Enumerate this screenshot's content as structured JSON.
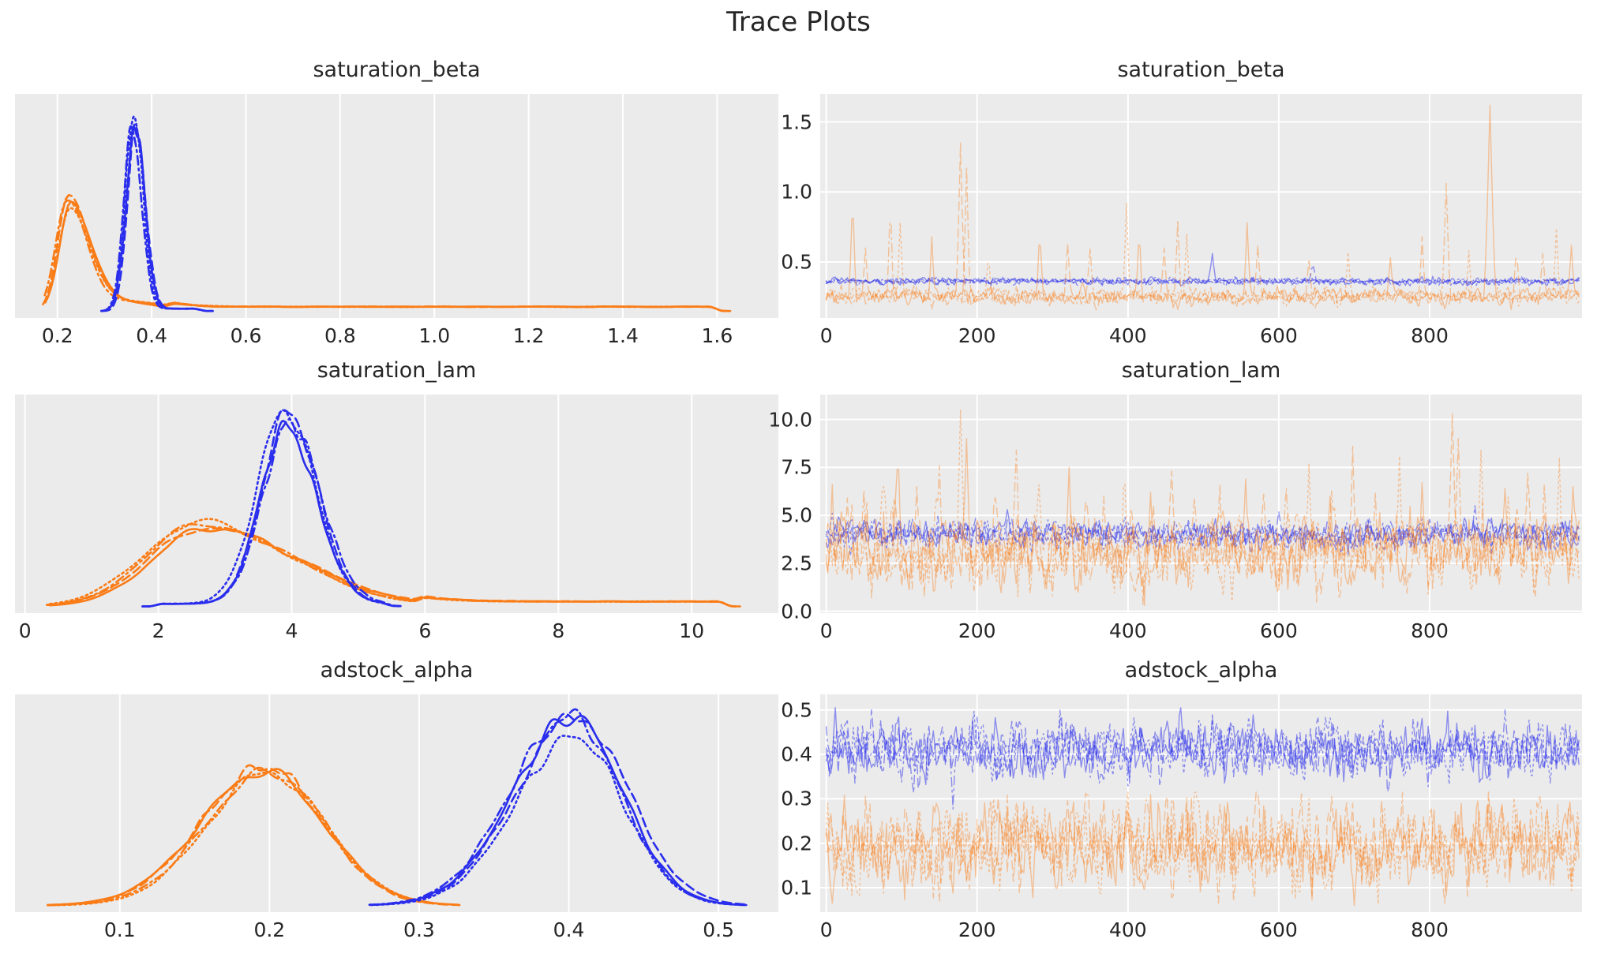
{
  "figure": {
    "title": "Trace Plots"
  },
  "style": {
    "background": "#ffffff",
    "panel_bg": "#ebebeb",
    "grid_color": "#ffffff",
    "text_color": "#262626",
    "blue": "#2a2eec",
    "orange": "#fa7c17",
    "chains_per_color": 4,
    "linestyles": [
      "solid",
      "dashed",
      "dashdot",
      "dotted"
    ],
    "legend": "none",
    "grid": "on"
  },
  "chart_data": [
    {
      "id": "saturation_beta-density",
      "type": "kde",
      "title": "saturation_beta",
      "xlim": [
        0.11,
        1.73
      ],
      "xticks": [
        0.2,
        0.4,
        0.6,
        0.8,
        1.0,
        1.2,
        1.4,
        1.6
      ],
      "xtick_labels": [
        "0.2",
        "0.4",
        "0.6",
        "0.8",
        "1.0",
        "1.2",
        "1.4",
        "1.6"
      ],
      "yticks": [],
      "ytick_labels": [],
      "series": [
        {
          "name": "chain-orange",
          "color": "orange",
          "support": [
            0.172,
            1.625
          ],
          "components": [
            {
              "m": 0.227,
              "sdl": 0.024,
              "sdr": 0.042,
              "h": 0.54
            },
            {
              "m": 0.33,
              "sdl": 0.05,
              "sdr": 0.08,
              "h": 0.05
            }
          ],
          "tail": {
            "from": 0.42,
            "to": 1.615,
            "level": 0.022
          }
        },
        {
          "name": "chain-blue",
          "color": "blue",
          "support": [
            0.293,
            0.53
          ],
          "components": [
            {
              "m": 0.358,
              "sdl": 0.0185,
              "sdr": 0.02,
              "h": 0.97
            }
          ],
          "tail": {
            "from": 0.31,
            "to": 0.52,
            "level": 0.012
          }
        }
      ]
    },
    {
      "id": "saturation_beta-trace",
      "type": "trace",
      "title": "saturation_beta",
      "xlim": [
        -8,
        1002
      ],
      "n_draws": 1000,
      "xticks": [
        0,
        200,
        400,
        600,
        800
      ],
      "xtick_labels": [
        "0",
        "200",
        "400",
        "600",
        "800"
      ],
      "ylim": [
        0.1,
        1.7
      ],
      "yticks": [
        0.5,
        1.0,
        1.5
      ],
      "ytick_labels": [
        "0.5",
        "1.0",
        "1.5"
      ],
      "series": [
        {
          "name": "chains-blue",
          "color": "blue",
          "mean": 0.362,
          "sd": 0.011,
          "clip": [
            0.3,
            1.7
          ],
          "spikes": [
            {
              "x": 512,
              "v": 0.56
            },
            {
              "x": 645,
              "v": 0.5
            }
          ]
        },
        {
          "name": "chains-orange",
          "color": "orange",
          "mean": 0.253,
          "sd": 0.024,
          "clip": [
            0.16,
            1.7
          ],
          "spikes": [
            {
              "x": 35,
              "v": 1.0
            },
            {
              "x": 52,
              "v": 0.6
            },
            {
              "x": 85,
              "v": 0.96
            },
            {
              "x": 98,
              "v": 0.78
            },
            {
              "x": 140,
              "v": 0.68
            },
            {
              "x": 178,
              "v": 1.35,
              "w": 6
            },
            {
              "x": 186,
              "v": 1.18
            },
            {
              "x": 215,
              "v": 0.56
            },
            {
              "x": 283,
              "v": 0.74
            },
            {
              "x": 320,
              "v": 0.63
            },
            {
              "x": 350,
              "v": 0.6
            },
            {
              "x": 398,
              "v": 0.92
            },
            {
              "x": 415,
              "v": 0.74
            },
            {
              "x": 448,
              "v": 0.6
            },
            {
              "x": 466,
              "v": 0.8
            },
            {
              "x": 478,
              "v": 0.7
            },
            {
              "x": 558,
              "v": 0.78
            },
            {
              "x": 572,
              "v": 0.62
            },
            {
              "x": 640,
              "v": 0.52
            },
            {
              "x": 692,
              "v": 0.57
            },
            {
              "x": 748,
              "v": 0.53
            },
            {
              "x": 790,
              "v": 0.68
            },
            {
              "x": 822,
              "v": 1.06,
              "w": 6
            },
            {
              "x": 852,
              "v": 0.58
            },
            {
              "x": 880,
              "v": 1.62,
              "w": 8
            },
            {
              "x": 915,
              "v": 0.62
            },
            {
              "x": 950,
              "v": 0.56
            },
            {
              "x": 968,
              "v": 0.74
            },
            {
              "x": 988,
              "v": 0.62
            }
          ]
        }
      ]
    },
    {
      "id": "saturation_lam-density",
      "type": "kde",
      "title": "saturation_lam",
      "xlim": [
        -0.15,
        11.3
      ],
      "xticks": [
        0,
        2,
        4,
        6,
        8,
        10
      ],
      "xtick_labels": [
        "0",
        "2",
        "4",
        "6",
        "8",
        "10"
      ],
      "yticks": [],
      "ytick_labels": [],
      "series": [
        {
          "name": "chain-orange",
          "color": "orange",
          "support": [
            0.33,
            10.68
          ],
          "components": [
            {
              "m": 2.68,
              "sdl": 0.8,
              "sdr": 1.35,
              "h": 0.42
            }
          ],
          "tail": {
            "from": 5.8,
            "to": 10.62,
            "level": 0.025
          }
        },
        {
          "name": "chain-blue",
          "color": "blue",
          "support": [
            1.78,
            5.62
          ],
          "components": [
            {
              "m": 3.93,
              "sdl": 0.4,
              "sdr": 0.45,
              "h": 0.96
            }
          ],
          "tail": {
            "from": 1.85,
            "to": 5.55,
            "level": 0.013
          }
        }
      ]
    },
    {
      "id": "saturation_lam-trace",
      "type": "trace",
      "title": "saturation_lam",
      "xlim": [
        -8,
        1002
      ],
      "n_draws": 1000,
      "xticks": [
        0,
        200,
        400,
        600,
        800
      ],
      "xtick_labels": [
        "0",
        "200",
        "400",
        "600",
        "800"
      ],
      "ylim": [
        -0.1,
        11.3
      ],
      "yticks": [
        0.0,
        2.5,
        5.0,
        7.5,
        10.0
      ],
      "ytick_labels": [
        "0.0",
        "2.5",
        "5.0",
        "7.5",
        "10.0"
      ],
      "series": [
        {
          "name": "chains-blue",
          "color": "blue",
          "mean": 4.0,
          "sd": 0.3,
          "clip": [
            2.6,
            5.6
          ],
          "spikes": [
            {
              "x": 240,
              "v": 5.3
            },
            {
              "x": 600,
              "v": 5.2
            },
            {
              "x": 860,
              "v": 5.5
            }
          ]
        },
        {
          "name": "chains-orange",
          "color": "orange",
          "mean": 3.15,
          "sd": 0.78,
          "clip": [
            0.3,
            11.2
          ],
          "spikes": [
            {
              "x": 8,
              "v": 6.6
            },
            {
              "x": 28,
              "v": 5.9
            },
            {
              "x": 50,
              "v": 6.3
            },
            {
              "x": 75,
              "v": 7.4
            },
            {
              "x": 95,
              "v": 8.8
            },
            {
              "x": 120,
              "v": 6.5
            },
            {
              "x": 150,
              "v": 7.6
            },
            {
              "x": 178,
              "v": 10.5,
              "w": 6
            },
            {
              "x": 186,
              "v": 9.0
            },
            {
              "x": 225,
              "v": 6.4
            },
            {
              "x": 252,
              "v": 8.4
            },
            {
              "x": 282,
              "v": 6.6
            },
            {
              "x": 322,
              "v": 7.5
            },
            {
              "x": 345,
              "v": 6.2
            },
            {
              "x": 368,
              "v": 6.0
            },
            {
              "x": 395,
              "v": 7.9
            },
            {
              "x": 430,
              "v": 6.2
            },
            {
              "x": 458,
              "v": 7.3
            },
            {
              "x": 488,
              "v": 5.9
            },
            {
              "x": 520,
              "v": 6.3
            },
            {
              "x": 556,
              "v": 6.9
            },
            {
              "x": 580,
              "v": 6.1
            },
            {
              "x": 610,
              "v": 6.4
            },
            {
              "x": 640,
              "v": 7.7
            },
            {
              "x": 668,
              "v": 6.0
            },
            {
              "x": 698,
              "v": 8.6
            },
            {
              "x": 728,
              "v": 6.2
            },
            {
              "x": 760,
              "v": 8.1
            },
            {
              "x": 790,
              "v": 6.7
            },
            {
              "x": 830,
              "v": 10.3,
              "w": 6
            },
            {
              "x": 838,
              "v": 9.0
            },
            {
              "x": 868,
              "v": 8.4
            },
            {
              "x": 900,
              "v": 6.4
            },
            {
              "x": 930,
              "v": 7.2
            },
            {
              "x": 952,
              "v": 6.6
            },
            {
              "x": 972,
              "v": 8.0
            },
            {
              "x": 990,
              "v": 6.5
            },
            {
              "x": 60,
              "v": 0.7
            },
            {
              "x": 300,
              "v": 0.8
            },
            {
              "x": 521,
              "v": 0.6
            },
            {
              "x": 761,
              "v": 0.7
            },
            {
              "x": 940,
              "v": 0.8
            }
          ]
        }
      ]
    },
    {
      "id": "adstock_alpha-density",
      "type": "kde",
      "title": "adstock_alpha",
      "xlim": [
        0.03,
        0.54
      ],
      "xticks": [
        0.1,
        0.2,
        0.3,
        0.4,
        0.5
      ],
      "xtick_labels": [
        "0.1",
        "0.2",
        "0.3",
        "0.4",
        "0.5"
      ],
      "yticks": [],
      "ytick_labels": [],
      "series": [
        {
          "name": "chain-orange",
          "color": "orange",
          "support": [
            0.052,
            0.327
          ],
          "components": [
            {
              "m": 0.197,
              "sdl": 0.043,
              "sdr": 0.04,
              "h": 0.72
            }
          ],
          "tail": null
        },
        {
          "name": "chain-blue",
          "color": "blue",
          "support": [
            0.268,
            0.518
          ],
          "components": [
            {
              "m": 0.403,
              "sdl": 0.04,
              "sdr": 0.034,
              "h": 0.93
            }
          ],
          "tail": null
        }
      ]
    },
    {
      "id": "adstock_alpha-trace",
      "type": "trace",
      "title": "adstock_alpha",
      "xlim": [
        -8,
        1002
      ],
      "n_draws": 1000,
      "xticks": [
        0,
        200,
        400,
        600,
        800
      ],
      "xtick_labels": [
        "0",
        "200",
        "400",
        "600",
        "800"
      ],
      "ylim": [
        0.045,
        0.535
      ],
      "yticks": [
        0.1,
        0.2,
        0.3,
        0.4,
        0.5
      ],
      "ytick_labels": [
        "0.1",
        "0.2",
        "0.3",
        "0.4",
        "0.5"
      ],
      "series": [
        {
          "name": "chains-blue",
          "color": "blue",
          "mean": 0.408,
          "sd": 0.026,
          "clip": [
            0.27,
            0.515
          ],
          "spikes": [
            {
              "x": 12,
              "v": 0.505
            },
            {
              "x": 60,
              "v": 0.5
            },
            {
              "x": 168,
              "v": 0.277
            },
            {
              "x": 310,
              "v": 0.5
            },
            {
              "x": 470,
              "v": 0.505
            },
            {
              "x": 745,
              "v": 0.285
            },
            {
              "x": 900,
              "v": 0.5
            },
            {
              "x": 960,
              "v": 0.335
            }
          ]
        },
        {
          "name": "chains-orange",
          "color": "orange",
          "mean": 0.196,
          "sd": 0.04,
          "clip": [
            0.055,
            0.315
          ],
          "spikes": [
            {
              "x": 8,
              "v": 0.065
            },
            {
              "x": 105,
              "v": 0.305
            },
            {
              "x": 150,
              "v": 0.07
            },
            {
              "x": 222,
              "v": 0.3
            },
            {
              "x": 305,
              "v": 0.07
            },
            {
              "x": 452,
              "v": 0.305
            },
            {
              "x": 520,
              "v": 0.065
            },
            {
              "x": 640,
              "v": 0.3
            },
            {
              "x": 700,
              "v": 0.06
            },
            {
              "x": 820,
              "v": 0.065
            },
            {
              "x": 878,
              "v": 0.298
            },
            {
              "x": 955,
              "v": 0.29
            }
          ]
        }
      ]
    }
  ]
}
